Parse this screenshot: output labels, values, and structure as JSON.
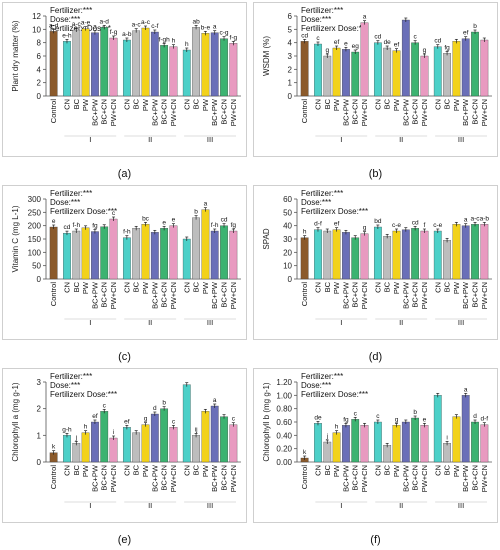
{
  "colors": {
    "control": "#8B5A2B",
    "CN": "#4DD0C8",
    "BC": "#BDBDBD",
    "PW": "#F2D21B",
    "BC+PW": "#6A6FB8",
    "BC+CN": "#3CB371",
    "PW+CN": "#E89AC0"
  },
  "chart_data": [
    {
      "type": "bar",
      "panel_label": "(a)",
      "ylabel": "Plant dry matter (%)",
      "ylim": [
        0,
        12
      ],
      "yticks": [
        0,
        2,
        4,
        6,
        8,
        10,
        12
      ],
      "stats": [
        "Fertilizer:***",
        "Dose:***",
        "Fertilizerx Dose:*"
      ],
      "groups": [
        {
          "label": "",
          "categories": [
            "Control"
          ],
          "values": [
            9.7
          ],
          "letters": [
            "a-d"
          ]
        },
        {
          "label": "I",
          "categories": [
            "CN",
            "BC",
            "PW",
            "BC+PW",
            "BC+CN",
            "PW+CN"
          ],
          "values": [
            8.2,
            9.9,
            10.1,
            9.5,
            10.3,
            8.7
          ],
          "letters": [
            "e-h",
            "a-c",
            "a-e",
            "a",
            "a-d",
            "f-g"
          ]
        },
        {
          "label": "II",
          "categories": [
            "CN",
            "BC",
            "PW",
            "BC+PW",
            "BC+CN",
            "PW+CN"
          ],
          "values": [
            8.4,
            9.8,
            10.2,
            9.6,
            7.6,
            7.4
          ],
          "letters": [
            "a-b",
            "a-c",
            "a-c",
            "c-f",
            "f-gh",
            "h"
          ]
        },
        {
          "label": "III",
          "categories": [
            "CN",
            "BC",
            "PW",
            "BC+PW",
            "BC+CN",
            "PW+CN"
          ],
          "values": [
            6.9,
            10.3,
            9.4,
            9.5,
            8.6,
            7.9
          ],
          "letters": [
            "h",
            "ab",
            "b-e",
            "a",
            "c-g",
            "f-g"
          ]
        }
      ]
    },
    {
      "type": "bar",
      "panel_label": "(b)",
      "ylabel": "WSDM (%)",
      "ylim": [
        0,
        6
      ],
      "yticks": [
        0,
        1,
        2,
        3,
        4,
        5,
        6
      ],
      "stats": [
        "Fertilizer:***",
        "Dose:***",
        "Fertilizerx Dose:***"
      ],
      "groups": [
        {
          "label": "",
          "categories": [
            "Control"
          ],
          "values": [
            4.1
          ],
          "letters": [
            "cd"
          ]
        },
        {
          "label": "I",
          "categories": [
            "CN",
            "BC",
            "PW",
            "BC+PW",
            "BC+CN",
            "PW+CN"
          ],
          "values": [
            3.9,
            3.0,
            3.6,
            3.5,
            3.3,
            5.5
          ],
          "letters": [
            "c",
            "g",
            "ef",
            "e",
            "eg",
            "a"
          ]
        },
        {
          "label": "II",
          "categories": [
            "CN",
            "BC",
            "PW",
            "BC+PW",
            "BC+CN",
            "PW+CN"
          ],
          "values": [
            4.0,
            3.6,
            3.4,
            5.7,
            4.0,
            3.0
          ],
          "letters": [
            "cd",
            "de",
            "ef",
            "",
            "c",
            "g"
          ]
        },
        {
          "label": "III",
          "categories": [
            "CN",
            "BC",
            "PW",
            "BC+PW",
            "BC+CN",
            "PW+CN"
          ],
          "values": [
            3.7,
            3.2,
            4.1,
            4.3,
            4.8,
            4.2
          ],
          "letters": [
            "cd",
            "fg",
            "",
            "ef",
            "b",
            ""
          ]
        }
      ]
    },
    {
      "type": "bar",
      "panel_label": "(c)",
      "ylabel": "Vitamin C (mg L-1)",
      "ylim": [
        0,
        300
      ],
      "yticks": [
        0,
        50,
        100,
        150,
        200,
        250,
        300
      ],
      "stats": [
        "Fertilizer:***",
        "Dose:***",
        "Fertilizerx Dose:***"
      ],
      "groups": [
        {
          "label": "",
          "categories": [
            "Control"
          ],
          "values": [
            195
          ],
          "letters": [
            "e"
          ]
        },
        {
          "label": "I",
          "categories": [
            "CN",
            "BC",
            "PW",
            "BC+PW",
            "BC+CN",
            "PW+CN"
          ],
          "values": [
            172,
            180,
            192,
            178,
            196,
            225
          ],
          "letters": [
            "cd",
            "f-h",
            "",
            "fg",
            "",
            "c"
          ]
        },
        {
          "label": "II",
          "categories": [
            "CN",
            "BC",
            "PW",
            "BC+PW",
            "BC+CN",
            "PW+CN"
          ],
          "values": [
            155,
            190,
            205,
            175,
            190,
            200
          ],
          "letters": [
            "f-h",
            "",
            "bc",
            "",
            "e",
            "e"
          ]
        },
        {
          "label": "III",
          "categories": [
            "CN",
            "BC",
            "PW",
            "BC+PW",
            "BC+CN",
            "PW+CN"
          ],
          "values": [
            150,
            230,
            260,
            180,
            200,
            180
          ],
          "letters": [
            "",
            "b",
            "a",
            "f-h",
            "cd",
            "fg"
          ]
        }
      ]
    },
    {
      "type": "bar",
      "panel_label": "(d)",
      "ylabel": "SPAD",
      "ylim": [
        0,
        60
      ],
      "yticks": [
        0,
        10,
        20,
        30,
        40,
        50,
        60
      ],
      "stats": [
        "Fertilizer:***",
        "Dose:***",
        "Fertilizerx Dose:***"
      ],
      "groups": [
        {
          "label": "",
          "categories": [
            "Control"
          ],
          "values": [
            31
          ],
          "letters": [
            "h"
          ]
        },
        {
          "label": "I",
          "categories": [
            "CN",
            "BC",
            "PW",
            "BC+PW",
            "BC+CN",
            "PW+CN"
          ],
          "values": [
            37,
            36,
            37,
            35,
            31,
            34
          ],
          "letters": [
            "d-f",
            "",
            "ef",
            "",
            "",
            "g"
          ]
        },
        {
          "label": "II",
          "categories": [
            "CN",
            "BC",
            "PW",
            "BC+PW",
            "BC+CN",
            "PW+CN"
          ],
          "values": [
            39,
            32,
            36,
            37,
            38,
            36
          ],
          "letters": [
            "bd",
            "",
            "c-e",
            "",
            "cd",
            "f"
          ]
        },
        {
          "label": "III",
          "categories": [
            "CN",
            "BC",
            "PW",
            "BC+PW",
            "BC+CN",
            "PW+CN"
          ],
          "values": [
            36,
            29,
            41,
            40,
            41,
            41
          ],
          "letters": [
            "c-e",
            "",
            "",
            "a",
            "a-c",
            "a-b"
          ]
        }
      ]
    },
    {
      "type": "bar",
      "panel_label": "(e)",
      "ylabel": "Chlorophyll a (mg g-1)",
      "ylim": [
        0,
        3
      ],
      "yticks": [
        0,
        1,
        2,
        3
      ],
      "stats": [
        "Fertilizer:***",
        "Dose:***",
        "Fertilizerx Dose:***"
      ],
      "groups": [
        {
          "label": "",
          "categories": [
            "Control"
          ],
          "values": [
            0.35
          ],
          "letters": [
            "k"
          ]
        },
        {
          "label": "I",
          "categories": [
            "CN",
            "BC",
            "PW",
            "BC+PW",
            "BC+CN",
            "PW+CN"
          ],
          "values": [
            1.0,
            0.7,
            1.1,
            1.5,
            1.9,
            0.9
          ],
          "letters": [
            "g-h",
            "j",
            "h",
            "ef",
            "c",
            "i"
          ]
        },
        {
          "label": "II",
          "categories": [
            "CN",
            "BC",
            "PW",
            "BC+PW",
            "BC+CN",
            "PW+CN"
          ],
          "values": [
            1.3,
            1.1,
            1.4,
            1.8,
            2.0,
            1.3
          ],
          "letters": [
            "ef",
            "",
            "g",
            "d",
            "b",
            "c"
          ]
        },
        {
          "label": "III",
          "categories": [
            "CN",
            "BC",
            "PW",
            "BC+PW",
            "BC+CN",
            "PW+CN"
          ],
          "values": [
            2.9,
            1.0,
            1.9,
            2.1,
            1.7,
            1.4
          ],
          "letters": [
            "",
            "ij",
            "",
            "a",
            "",
            "c"
          ]
        }
      ]
    },
    {
      "type": "bar",
      "panel_label": "(f)",
      "ylabel": "Chlorophyll b (mg g-1)",
      "ylim": [
        0,
        1.2
      ],
      "yticks": [
        0,
        0.2,
        0.4,
        0.6,
        0.8,
        1.0,
        1.2
      ],
      "ytick_labels": [
        "0.00",
        "0.20",
        "0.40",
        "0.60",
        "0.80",
        "1.00",
        "1.20"
      ],
      "stats": [
        "Fertilizer:***",
        "Dose:***",
        "Fertilizerx Dose:***"
      ],
      "groups": [
        {
          "label": "",
          "categories": [
            "Control"
          ],
          "values": [
            0.06
          ],
          "letters": [
            "k"
          ]
        },
        {
          "label": "I",
          "categories": [
            "CN",
            "BC",
            "PW",
            "BC+PW",
            "BC+CN",
            "PW+CN"
          ],
          "values": [
            0.58,
            0.3,
            0.44,
            0.55,
            0.64,
            0.55
          ],
          "letters": [
            "de",
            "j",
            "h",
            "fg",
            "c",
            ""
          ]
        },
        {
          "label": "II",
          "categories": [
            "CN",
            "BC",
            "PW",
            "BC+PW",
            "BC+CN",
            "PW+CN"
          ],
          "values": [
            0.6,
            0.25,
            0.55,
            0.6,
            0.66,
            0.55
          ],
          "letters": [
            "c",
            "",
            "g",
            "",
            "b",
            "e"
          ]
        },
        {
          "label": "III",
          "categories": [
            "CN",
            "BC",
            "PW",
            "BC+PW",
            "BC+CN",
            "PW+CN"
          ],
          "values": [
            1.0,
            0.28,
            0.68,
            1.0,
            0.6,
            0.56
          ],
          "letters": [
            "",
            "i",
            "",
            "a",
            "d",
            "d-f"
          ]
        }
      ]
    }
  ]
}
